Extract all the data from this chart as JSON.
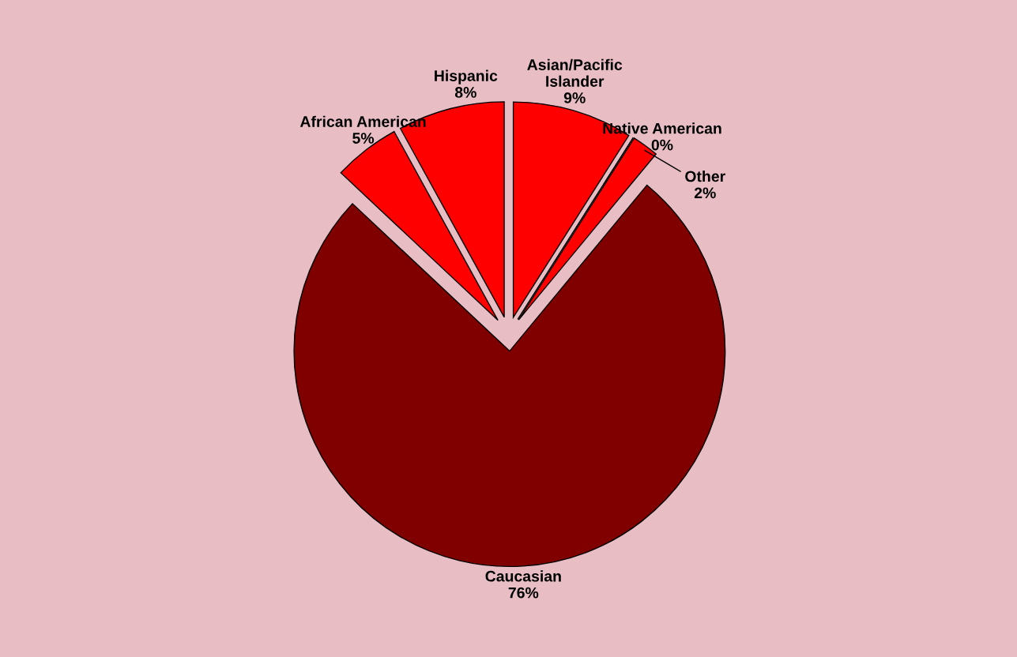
{
  "chart_data": {
    "type": "pie",
    "categories": [
      "Asian/Pacific Islander",
      "Native American",
      "Other",
      "Caucasian",
      "African American",
      "Hispanic"
    ],
    "values": [
      9,
      0,
      2,
      76,
      5,
      8
    ],
    "value_labels": [
      "9%",
      "0%",
      "2%",
      "76%",
      "5%",
      "8%"
    ],
    "colors": [
      "#ff0000",
      "#000000",
      "#ff0000",
      "#800000",
      "#ff0000",
      "#ff0000"
    ]
  }
}
